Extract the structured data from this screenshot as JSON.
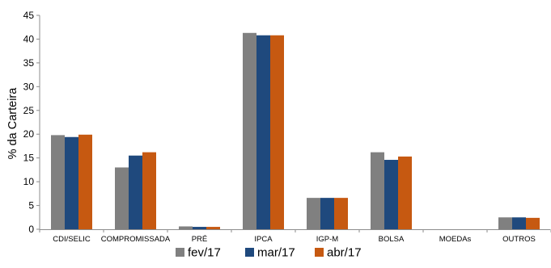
{
  "chart_data": {
    "type": "bar",
    "ylabel": "% da Carteira",
    "xlabel": "",
    "ylim": [
      0,
      45
    ],
    "yticks": [
      0,
      5,
      10,
      15,
      20,
      25,
      30,
      35,
      40,
      45
    ],
    "grid": false,
    "legend_position": "bottom",
    "categories": [
      "CDI/SELIC",
      "COMPROMISSADA",
      "PRÉ",
      "IPCA",
      "IGP-M",
      "BOLSA",
      "MOEDAs",
      "OUTROS"
    ],
    "series": [
      {
        "name": "fev/17",
        "color": "#808080",
        "values": [
          19.8,
          13.0,
          0.6,
          41.3,
          6.6,
          16.2,
          0.0,
          2.5
        ]
      },
      {
        "name": "mar/17",
        "color": "#1f497d",
        "values": [
          19.4,
          15.5,
          0.5,
          40.8,
          6.6,
          14.6,
          0.0,
          2.5
        ]
      },
      {
        "name": "abr/17",
        "color": "#c65911",
        "values": [
          19.9,
          16.2,
          0.5,
          40.8,
          6.6,
          15.3,
          0.0,
          2.4
        ]
      }
    ]
  }
}
